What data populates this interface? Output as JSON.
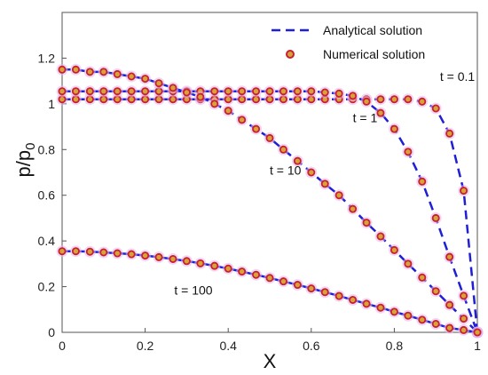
{
  "chart_data": {
    "type": "line",
    "xlabel": "X",
    "ylabel": "p/p",
    "ylabel_sub": "0",
    "xlim": [
      0,
      1
    ],
    "ylim": [
      0,
      1.4
    ],
    "xticks": [
      "0",
      "0.2",
      "0.4",
      "0.6",
      "0.8",
      "1"
    ],
    "yticks": [
      "0",
      "0.2",
      "0.4",
      "0.6",
      "0.8",
      "1",
      "1.2"
    ],
    "legend": {
      "position": "top-right",
      "analytical": "Analytical solution",
      "numerical": "Numerical solution"
    },
    "colors": {
      "analytical": "#1f1fd6",
      "marker_edge": "#c8202c",
      "marker_fill": "#d6a23a",
      "marker_halo": "#e8b4ee"
    },
    "x": [
      0,
      0.033,
      0.067,
      0.1,
      0.133,
      0.167,
      0.2,
      0.233,
      0.267,
      0.3,
      0.333,
      0.367,
      0.4,
      0.433,
      0.467,
      0.5,
      0.533,
      0.567,
      0.6,
      0.633,
      0.667,
      0.7,
      0.733,
      0.767,
      0.8,
      0.833,
      0.867,
      0.9,
      0.933,
      0.967,
      1
    ],
    "series": [
      {
        "label": "t = 0.1",
        "values": [
          1.02,
          1.02,
          1.02,
          1.02,
          1.02,
          1.02,
          1.02,
          1.02,
          1.02,
          1.02,
          1.02,
          1.02,
          1.02,
          1.02,
          1.02,
          1.02,
          1.02,
          1.02,
          1.02,
          1.02,
          1.02,
          1.02,
          1.02,
          1.02,
          1.02,
          1.02,
          1.01,
          0.98,
          0.87,
          0.62,
          0.0
        ]
      },
      {
        "label": "t = 1",
        "values": [
          1.055,
          1.055,
          1.055,
          1.055,
          1.055,
          1.055,
          1.055,
          1.055,
          1.055,
          1.055,
          1.055,
          1.055,
          1.055,
          1.055,
          1.055,
          1.055,
          1.055,
          1.055,
          1.055,
          1.05,
          1.045,
          1.035,
          1.01,
          0.96,
          0.89,
          0.79,
          0.66,
          0.5,
          0.33,
          0.16,
          0.0
        ]
      },
      {
        "label": "t = 10",
        "values": [
          1.15,
          1.15,
          1.14,
          1.14,
          1.13,
          1.12,
          1.11,
          1.09,
          1.07,
          1.05,
          1.03,
          1.0,
          0.97,
          0.93,
          0.89,
          0.85,
          0.8,
          0.75,
          0.7,
          0.65,
          0.6,
          0.54,
          0.48,
          0.42,
          0.36,
          0.3,
          0.24,
          0.18,
          0.12,
          0.06,
          0.0
        ]
      },
      {
        "label": "t = 100",
        "values": [
          0.355,
          0.355,
          0.353,
          0.35,
          0.346,
          0.342,
          0.336,
          0.329,
          0.321,
          0.312,
          0.302,
          0.291,
          0.279,
          0.266,
          0.252,
          0.238,
          0.223,
          0.208,
          0.192,
          0.176,
          0.159,
          0.142,
          0.125,
          0.108,
          0.09,
          0.073,
          0.055,
          0.037,
          0.019,
          0.01,
          0.0
        ]
      }
    ],
    "annotations": [
      {
        "text": "t = 0.1",
        "x": 0.91,
        "y": 1.1
      },
      {
        "text": "t = 1",
        "x": 0.7,
        "y": 0.92
      },
      {
        "text": "t = 10",
        "x": 0.5,
        "y": 0.69
      },
      {
        "text": "t = 100",
        "x": 0.27,
        "y": 0.165
      }
    ]
  }
}
